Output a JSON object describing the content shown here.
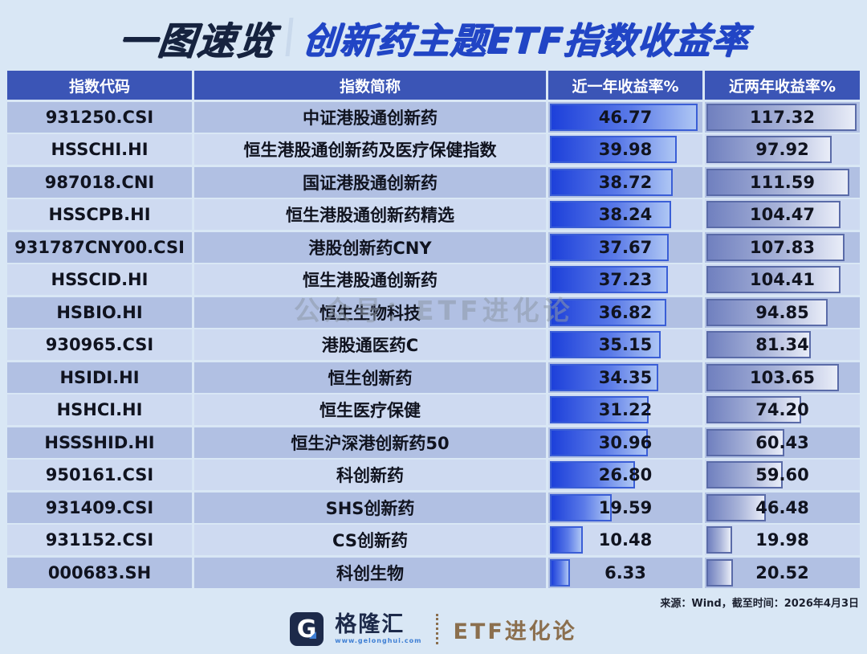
{
  "header": {
    "badge": "一图速览",
    "title": "创新药主题ETF指数收益率"
  },
  "table": {
    "columns": [
      "指数代码",
      "指数简称",
      "近一年收益率%",
      "近两年收益率%"
    ],
    "rows": [
      {
        "code": "931250.CSI",
        "name": "中证港股通创新药",
        "y1": "46.77",
        "y2": "117.32"
      },
      {
        "code": "HSSCHI.HI",
        "name": "恒生港股通创新药及医疗保健指数",
        "y1": "39.98",
        "y2": "97.92"
      },
      {
        "code": "987018.CNI",
        "name": "国证港股通创新药",
        "y1": "38.72",
        "y2": "111.59"
      },
      {
        "code": "HSSCPB.HI",
        "name": "恒生港股通创新药精选",
        "y1": "38.24",
        "y2": "104.47"
      },
      {
        "code": "931787CNY00.CSI",
        "name": "港股创新药CNY",
        "y1": "37.67",
        "y2": "107.83"
      },
      {
        "code": "HSSCID.HI",
        "name": "恒生港股通创新药",
        "y1": "37.23",
        "y2": "104.41"
      },
      {
        "code": "HSBIO.HI",
        "name": "恒生生物科技",
        "y1": "36.82",
        "y2": "94.85"
      },
      {
        "code": "930965.CSI",
        "name": "港股通医药C",
        "y1": "35.15",
        "y2": "81.34"
      },
      {
        "code": "HSIDI.HI",
        "name": "恒生创新药",
        "y1": "34.35",
        "y2": "103.65"
      },
      {
        "code": "HSHCI.HI",
        "name": "恒生医疗保健",
        "y1": "31.22",
        "y2": "74.20"
      },
      {
        "code": "HSSSHID.HI",
        "name": "恒生沪深港创新药50",
        "y1": "30.96",
        "y2": "60.43"
      },
      {
        "code": "950161.CSI",
        "name": "科创新药",
        "y1": "26.80",
        "y2": "59.60"
      },
      {
        "code": "931409.CSI",
        "name": "SHS创新药",
        "y1": "19.59",
        "y2": "46.48"
      },
      {
        "code": "931152.CSI",
        "name": "CS创新药",
        "y1": "10.48",
        "y2": "19.98"
      },
      {
        "code": "000683.SH",
        "name": "科创生物",
        "y1": "6.33",
        "y2": "20.52"
      }
    ]
  },
  "watermark": "公众号：ETF进化论",
  "source_note": "来源：Wind，截至时间：2026年4月3日",
  "footer": {
    "brand": "格隆汇",
    "brand_url": "www.gelonghui.com",
    "account": "ETF进化论"
  },
  "colors": {
    "page_bg": "#d9e7f5",
    "header_row_bg": "#3b55b6",
    "row_odd_bg": "#b1c0e3",
    "row_even_bg": "#cedaf1",
    "bar_1y_start": "#1d40da",
    "bar_1y_end": "#aec6f4",
    "bar_2y_start": "#7080bf",
    "bar_2y_end": "#e9edf8",
    "title_badge": "#16233f",
    "title_main": "#2145c5",
    "account_text": "#8b6f4e"
  },
  "chart_data": {
    "type": "table",
    "title": "创新药主题ETF指数收益率",
    "columns": [
      "指数代码",
      "指数简称",
      "近一年收益率%",
      "近两年收益率%"
    ],
    "categories": [
      "931250.CSI",
      "HSSCHI.HI",
      "987018.CNI",
      "HSSCPB.HI",
      "931787CNY00.CSI",
      "HSSCID.HI",
      "HSBIO.HI",
      "930965.CSI",
      "HSIDI.HI",
      "HSHCI.HI",
      "HSSSHID.HI",
      "950161.CSI",
      "931409.CSI",
      "931152.CSI",
      "000683.SH"
    ],
    "category_names": [
      "中证港股通创新药",
      "恒生港股通创新药及医疗保健指数",
      "国证港股通创新药",
      "恒生港股通创新药精选",
      "港股创新药CNY",
      "恒生港股通创新药",
      "恒生生物科技",
      "港股通医药C",
      "恒生创新药",
      "恒生医疗保健",
      "恒生沪深港创新药50",
      "科创新药",
      "SHS创新药",
      "CS创新药",
      "科创生物"
    ],
    "series": [
      {
        "name": "近一年收益率%",
        "values": [
          46.77,
          39.98,
          38.72,
          38.24,
          37.67,
          37.23,
          36.82,
          35.15,
          34.35,
          31.22,
          30.96,
          26.8,
          19.59,
          10.48,
          6.33
        ]
      },
      {
        "name": "近两年收益率%",
        "values": [
          117.32,
          97.92,
          111.59,
          104.47,
          107.83,
          104.41,
          94.85,
          81.34,
          103.65,
          74.2,
          60.43,
          59.6,
          46.48,
          19.98,
          20.52
        ]
      }
    ],
    "layout": "in-cell horizontal data bars, each column scaled to its own max, sorted descending by 1-year return"
  }
}
